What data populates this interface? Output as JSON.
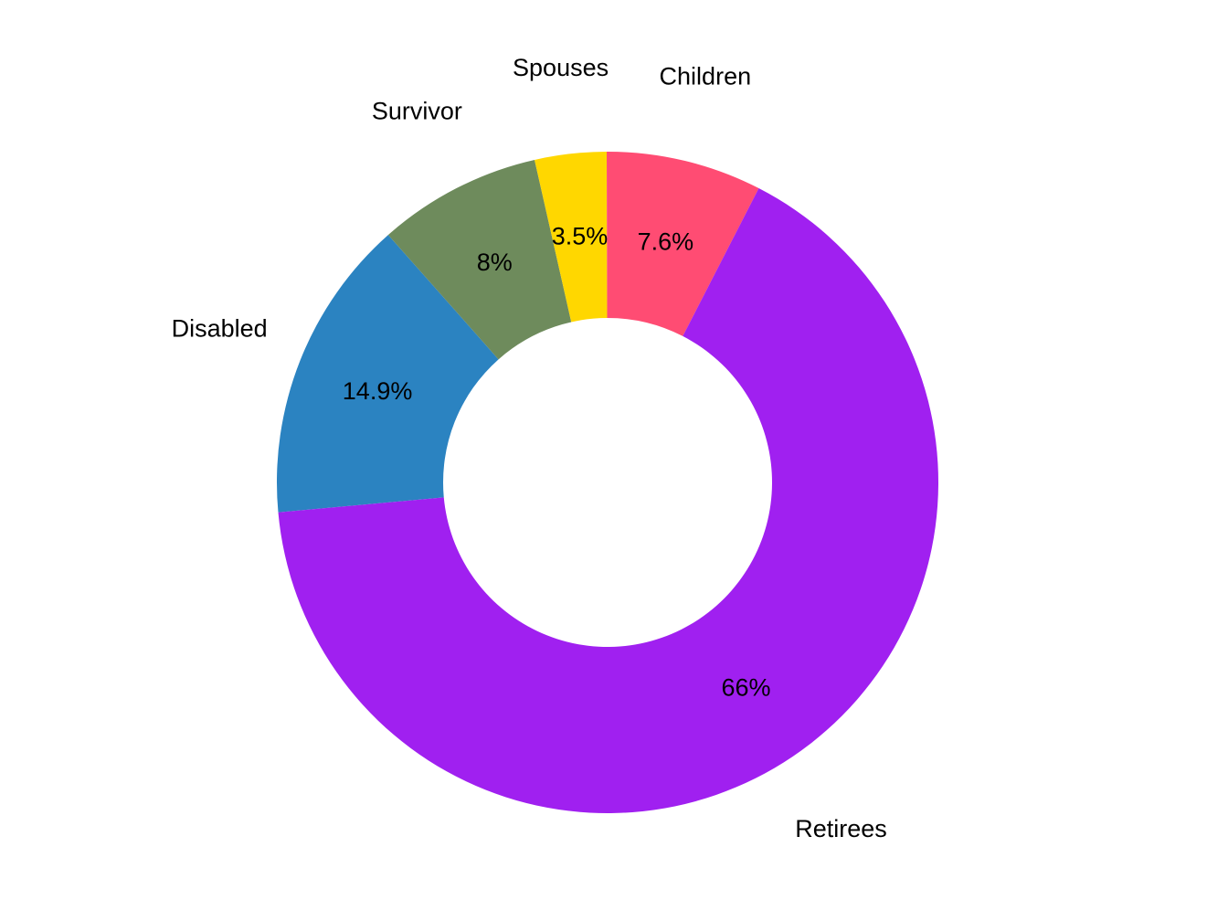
{
  "chart_data": {
    "type": "pie",
    "donut": true,
    "title": "",
    "legend": "none",
    "slices": [
      {
        "name": "Disabled",
        "value": 14.9,
        "label": "14.9%",
        "color": "#2B83C1"
      },
      {
        "name": "Survivor",
        "value": 8.0,
        "label": "8%",
        "color": "#6E8B5C"
      },
      {
        "name": "Spouses",
        "value": 3.5,
        "label": "3.5%",
        "color": "#FFD700"
      },
      {
        "name": "Children",
        "value": 7.6,
        "label": "7.6%",
        "color": "#FF4C73"
      },
      {
        "name": "Retirees",
        "value": 66.0,
        "label": "66%",
        "color": "#A020F0"
      }
    ]
  }
}
